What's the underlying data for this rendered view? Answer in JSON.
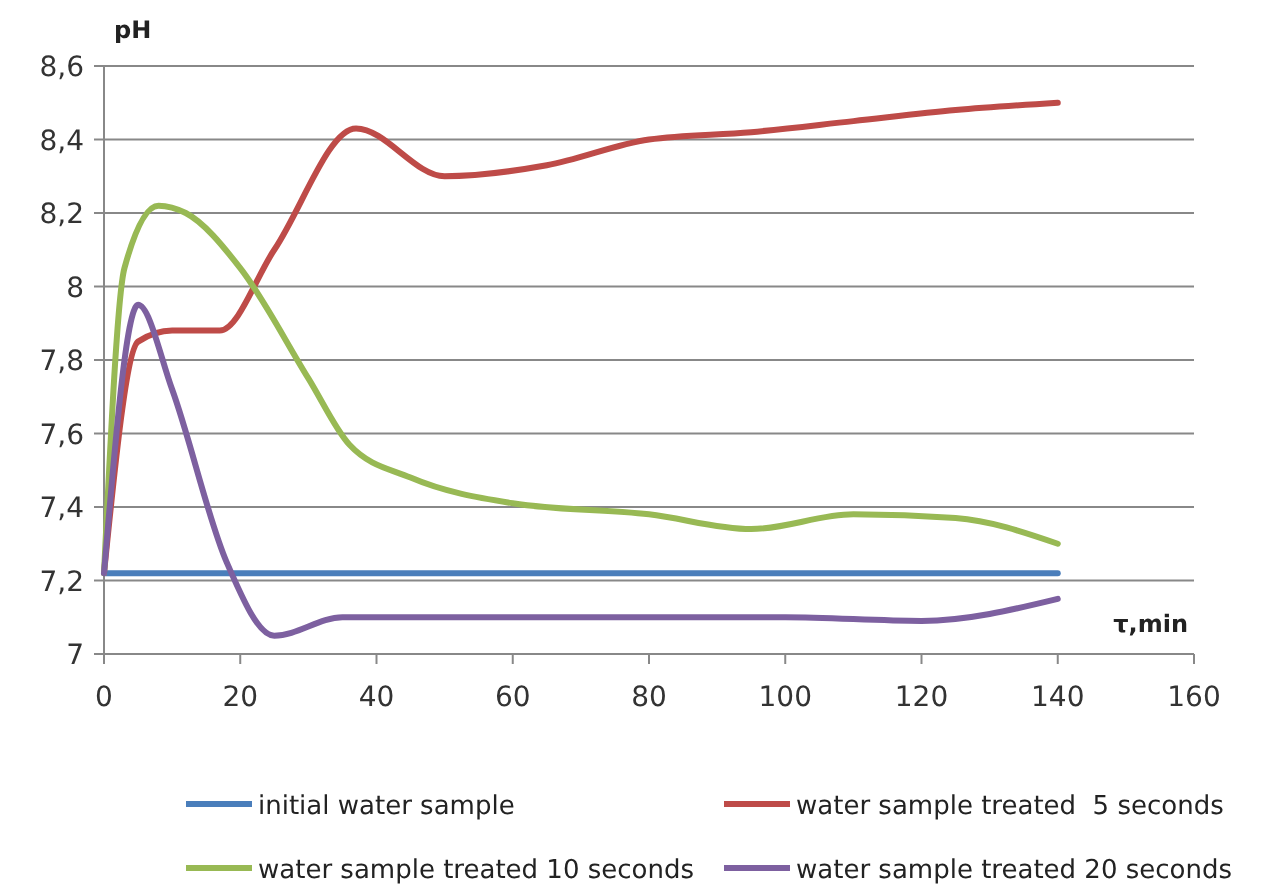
{
  "chart_data": {
    "type": "line",
    "ylabel": "pH",
    "xlabel": "τ,min",
    "xlim": [
      0,
      160
    ],
    "xticks": [
      0,
      20,
      40,
      60,
      80,
      100,
      120,
      140,
      160
    ],
    "ylim": [
      7,
      8.6
    ],
    "yticks": [
      7,
      {
        "value": 7.2,
        "label": "7,2"
      },
      {
        "value": 7.4,
        "label": "7,4"
      },
      {
        "value": 7.6,
        "label": "7,6"
      },
      {
        "value": 7.8,
        "label": "7,8"
      },
      8,
      {
        "value": 8.2,
        "label": "8,2"
      },
      {
        "value": 8.4,
        "label": "8,4"
      },
      {
        "value": 8.6,
        "label": "8,6"
      }
    ],
    "grid": "y",
    "legend": "bottom",
    "marker": "none",
    "line_style": "solid",
    "series": [
      {
        "name": "initial water sample",
        "color": "#4a7ebb",
        "x": [
          0,
          140
        ],
        "values": [
          7.22,
          7.22
        ]
      },
      {
        "name": "water sample treated  5 seconds",
        "color": "#be4b48",
        "x": [
          0,
          5,
          10,
          17,
          25,
          37,
          50,
          65,
          80,
          95,
          110,
          125,
          140
        ],
        "values": [
          7.22,
          7.85,
          7.88,
          7.88,
          8.1,
          8.43,
          8.3,
          8.33,
          8.4,
          8.42,
          8.45,
          8.48,
          8.5
        ]
      },
      {
        "name": "water sample treated 10 seconds",
        "color": "#98b954",
        "x": [
          0,
          3,
          8,
          12,
          20,
          30,
          36,
          45,
          60,
          80,
          95,
          110,
          125,
          140
        ],
        "values": [
          7.22,
          8.05,
          8.22,
          8.2,
          8.05,
          7.75,
          7.57,
          7.48,
          7.41,
          7.38,
          7.34,
          7.38,
          7.37,
          7.3
        ]
      },
      {
        "name": "water sample treated 20 seconds",
        "color": "#7d60a0",
        "x": [
          0,
          5,
          10,
          18,
          25,
          35,
          60,
          100,
          120,
          140
        ],
        "values": [
          7.22,
          7.95,
          7.72,
          7.25,
          7.05,
          7.1,
          7.1,
          7.1,
          7.09,
          7.15
        ]
      }
    ]
  }
}
